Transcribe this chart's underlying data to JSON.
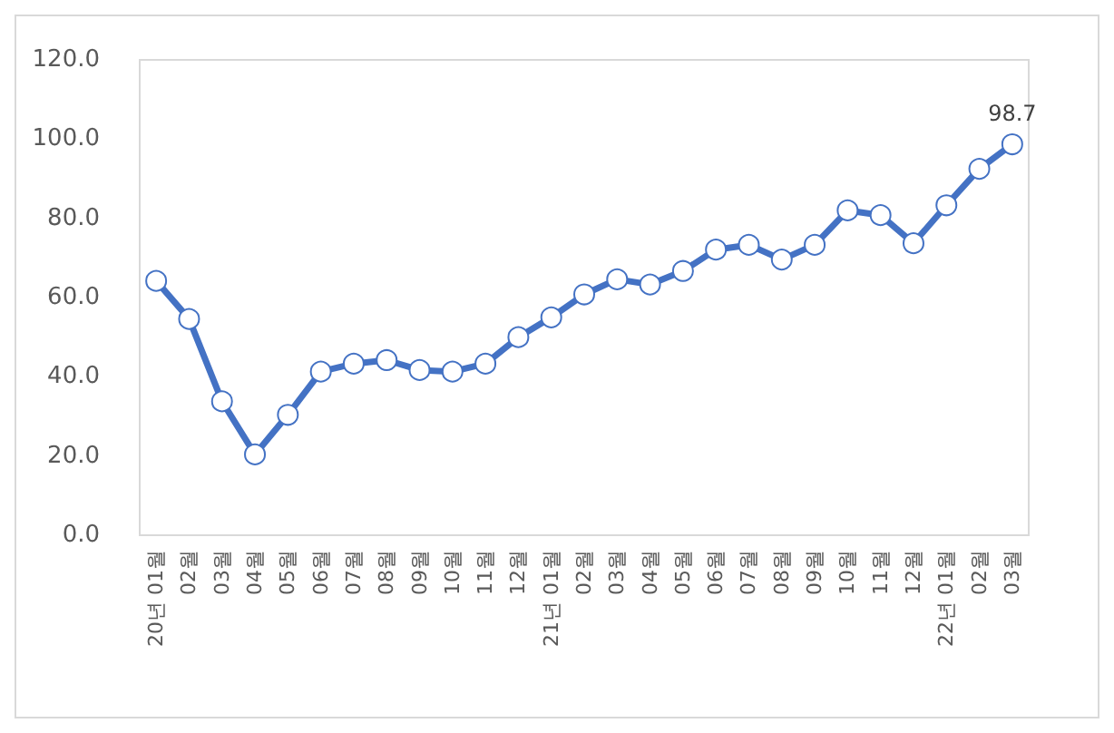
{
  "chart_data": {
    "type": "line",
    "categories": [
      "20년 01월",
      "02월",
      "03월",
      "04월",
      "05월",
      "06월",
      "07월",
      "08월",
      "09월",
      "10월",
      "11월",
      "12월",
      "21년 01월",
      "02월",
      "03월",
      "04월",
      "05월",
      "06월",
      "07월",
      "08월",
      "09월",
      "10월",
      "11월",
      "12월",
      "22년 01월",
      "02월",
      "03월"
    ],
    "series": [
      {
        "color": "#4472c4",
        "values": [
          64.2,
          54.6,
          33.8,
          20.4,
          30.4,
          41.3,
          43.3,
          44.2,
          41.7,
          41.3,
          43.3,
          50,
          55,
          60.8,
          64.6,
          63.3,
          66.7,
          72.1,
          73.3,
          69.6,
          73.3,
          82,
          80.8,
          73.7,
          83.3,
          92.5,
          98.7
        ],
        "value_labels": [
          null,
          null,
          null,
          null,
          null,
          null,
          null,
          null,
          null,
          null,
          null,
          null,
          null,
          null,
          null,
          null,
          null,
          null,
          null,
          null,
          null,
          null,
          null,
          null,
          null,
          null,
          "98.7"
        ]
      }
    ],
    "ylim": [
      0,
      120
    ],
    "yticks": [
      {
        "value": 0,
        "label": "0.0"
      },
      {
        "value": 20,
        "label": "20.0"
      },
      {
        "value": 40,
        "label": "40.0"
      },
      {
        "value": 60,
        "label": "60.0"
      },
      {
        "value": 80,
        "label": "80.0"
      },
      {
        "value": 100,
        "label": "100.0"
      },
      {
        "value": 120,
        "label": "120.0"
      }
    ],
    "grid": false,
    "marker": "circle",
    "line_style": "solid"
  }
}
